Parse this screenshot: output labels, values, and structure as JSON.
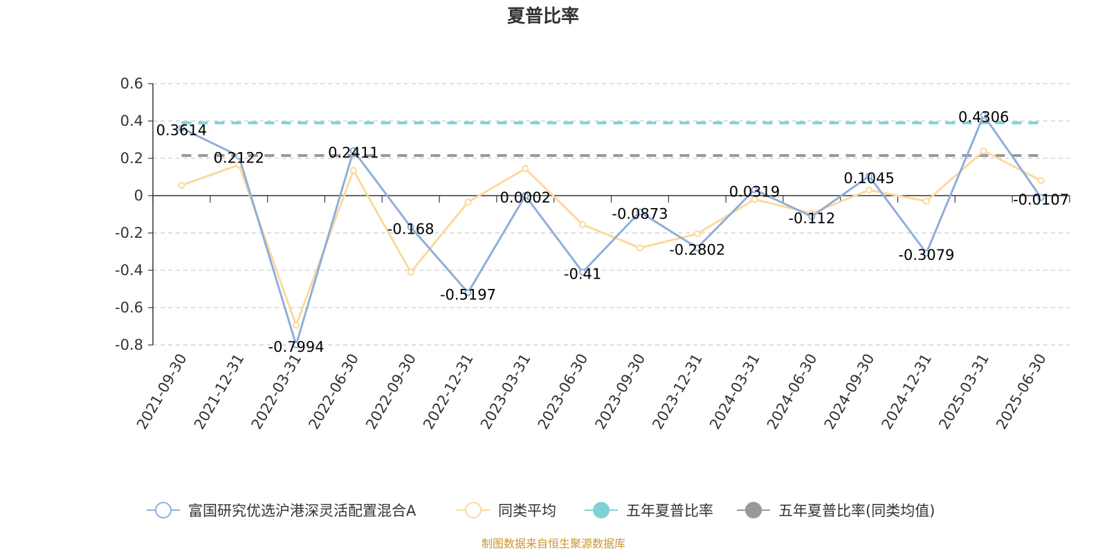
{
  "chart_data": {
    "type": "line",
    "title": "夏普比率",
    "categories": [
      "2021-09-30",
      "2021-12-31",
      "2022-03-31",
      "2022-06-30",
      "2022-09-30",
      "2022-12-31",
      "2023-03-31",
      "2023-06-30",
      "2023-09-30",
      "2023-12-31",
      "2024-03-31",
      "2024-06-30",
      "2024-09-30",
      "2024-12-31",
      "2025-03-31",
      "2025-06-30"
    ],
    "ylim": [
      -0.8,
      0.6
    ],
    "yticks": [
      0.6,
      0.4,
      0.2,
      0,
      -0.2,
      -0.4,
      -0.6,
      -0.8
    ],
    "ytick_labels": [
      "0.6",
      "0.4",
      "0.2",
      "0",
      "-0.2",
      "-0.4",
      "-0.6",
      "-0.8"
    ],
    "grid": true,
    "legend_position": "bottom-center",
    "series": [
      {
        "name": "富国研究优选沪港深灵活配置混合A",
        "color": "#8eaedb",
        "values": [
          0.3614,
          0.2122,
          -0.7994,
          0.2411,
          -0.168,
          -0.5197,
          0.0002,
          -0.41,
          -0.0873,
          -0.2802,
          0.0319,
          -0.112,
          0.1045,
          -0.3079,
          0.4306,
          -0.0107
        ],
        "labels": [
          "0.3614",
          "0.2122",
          "-0.7994",
          "0.2411",
          "-0.168",
          "-0.5197",
          "0.0002",
          "-0.41",
          "-0.0873",
          "-0.2802",
          "0.0319",
          "-0.112",
          "0.1045",
          "-0.3079",
          "0.4306",
          "-0.0107"
        ]
      },
      {
        "name": "同类平均",
        "color": "#fbd99a",
        "values": [
          0.055,
          0.165,
          -0.695,
          0.135,
          -0.41,
          -0.035,
          0.145,
          -0.155,
          -0.28,
          -0.205,
          -0.02,
          -0.095,
          0.03,
          -0.03,
          0.24,
          0.08
        ]
      },
      {
        "name": "五年夏普比率",
        "color": "#80d0d6",
        "value": 0.39
      },
      {
        "name": "五年夏普比率(同类均值)",
        "color": "#999999",
        "value": 0.215
      }
    ],
    "source": "制图数据来自恒生聚源数据库"
  }
}
